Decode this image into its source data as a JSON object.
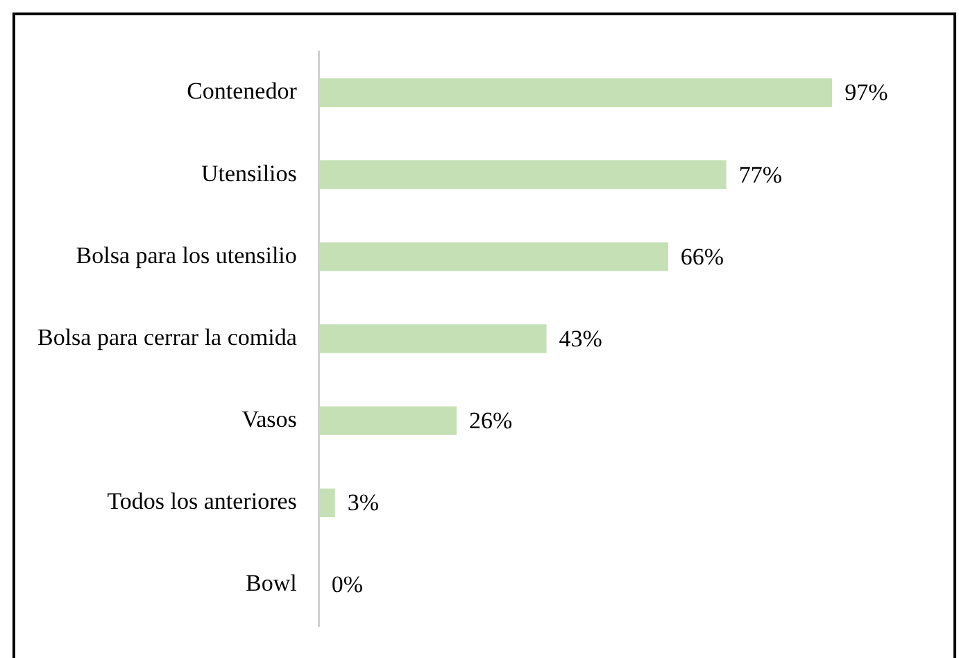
{
  "chart_data": {
    "type": "bar",
    "orientation": "horizontal",
    "categories": [
      "Contenedor",
      "Utensilios",
      "Bolsa para los utensilio",
      "Bolsa para cerrar la comida",
      "Vasos",
      "Todos los anteriores",
      "Bowl"
    ],
    "values": [
      97,
      77,
      66,
      43,
      26,
      3,
      0
    ],
    "value_labels": [
      "97%",
      "77%",
      "66%",
      "43%",
      "26%",
      "3%",
      "0%"
    ],
    "color": "#c5e0b4",
    "grid": false,
    "legend": false
  }
}
